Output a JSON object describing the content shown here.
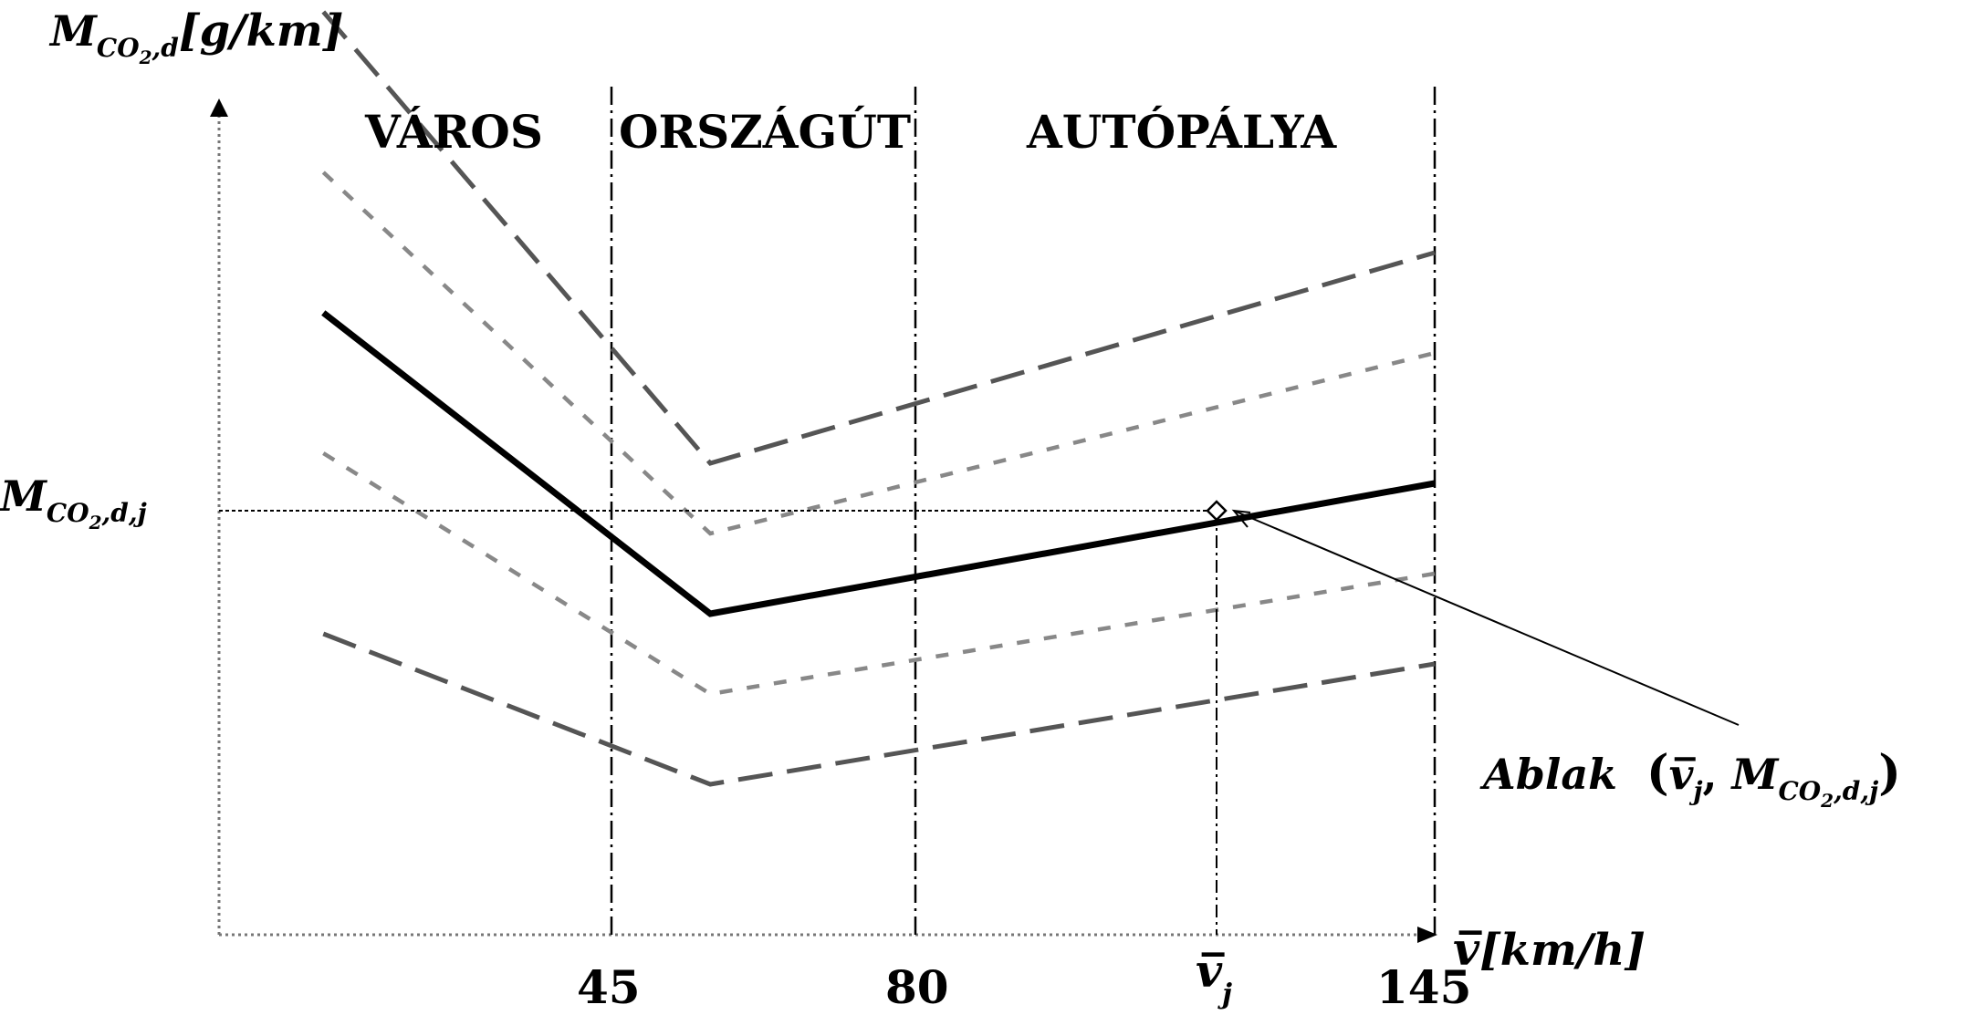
{
  "diagram": {
    "y_axis_label": {
      "main": "M",
      "sub": "CO",
      "subsub": "2",
      "tail": ",d",
      "unit": "[g/km]"
    },
    "x_axis_label": {
      "var": "v̅",
      "unit": "[km/h]"
    },
    "regions": [
      "VÁROS",
      "ORSZÁGÚT",
      "AUTÓPÁLYA"
    ],
    "x_ticks": [
      "45",
      "80",
      "v̅",
      "j",
      "145"
    ],
    "window_value_label": {
      "main": "M",
      "sub": "CO",
      "subsub": "2",
      "tail": ",d,j"
    },
    "annotation": {
      "word": "Ablak",
      "open": "(",
      "v": "v̅",
      "vsub": "j",
      "sep": ", ",
      "m": "M",
      "msub": "CO",
      "msubsub": "2",
      "mtail": ",d,j",
      "close": ")"
    }
  },
  "chart_data": {
    "type": "line",
    "xlabel": "v̅ [km/h]",
    "ylabel": "M_CO2,d [g/km]",
    "x_ticks": [
      45,
      80,
      145
    ],
    "region_boundaries": [
      45,
      80,
      145
    ],
    "series": [
      {
        "style": "solid",
        "x": [
          10,
          57,
          145
        ],
        "y": [
          62,
          32,
          45
        ]
      },
      {
        "style": "long-dash",
        "x": [
          10,
          57,
          145
        ],
        "y": [
          92,
          47,
          68
        ]
      },
      {
        "style": "short-dash",
        "x": [
          10,
          57,
          145
        ],
        "y": [
          76,
          40,
          58
        ]
      },
      {
        "style": "short-dash",
        "x": [
          10,
          57,
          145
        ],
        "y": [
          48,
          24,
          36
        ]
      },
      {
        "style": "long-dash",
        "x": [
          10,
          57,
          145
        ],
        "y": [
          30,
          15,
          27
        ]
      }
    ],
    "window_point": {
      "x": 118,
      "y": 48
    }
  }
}
